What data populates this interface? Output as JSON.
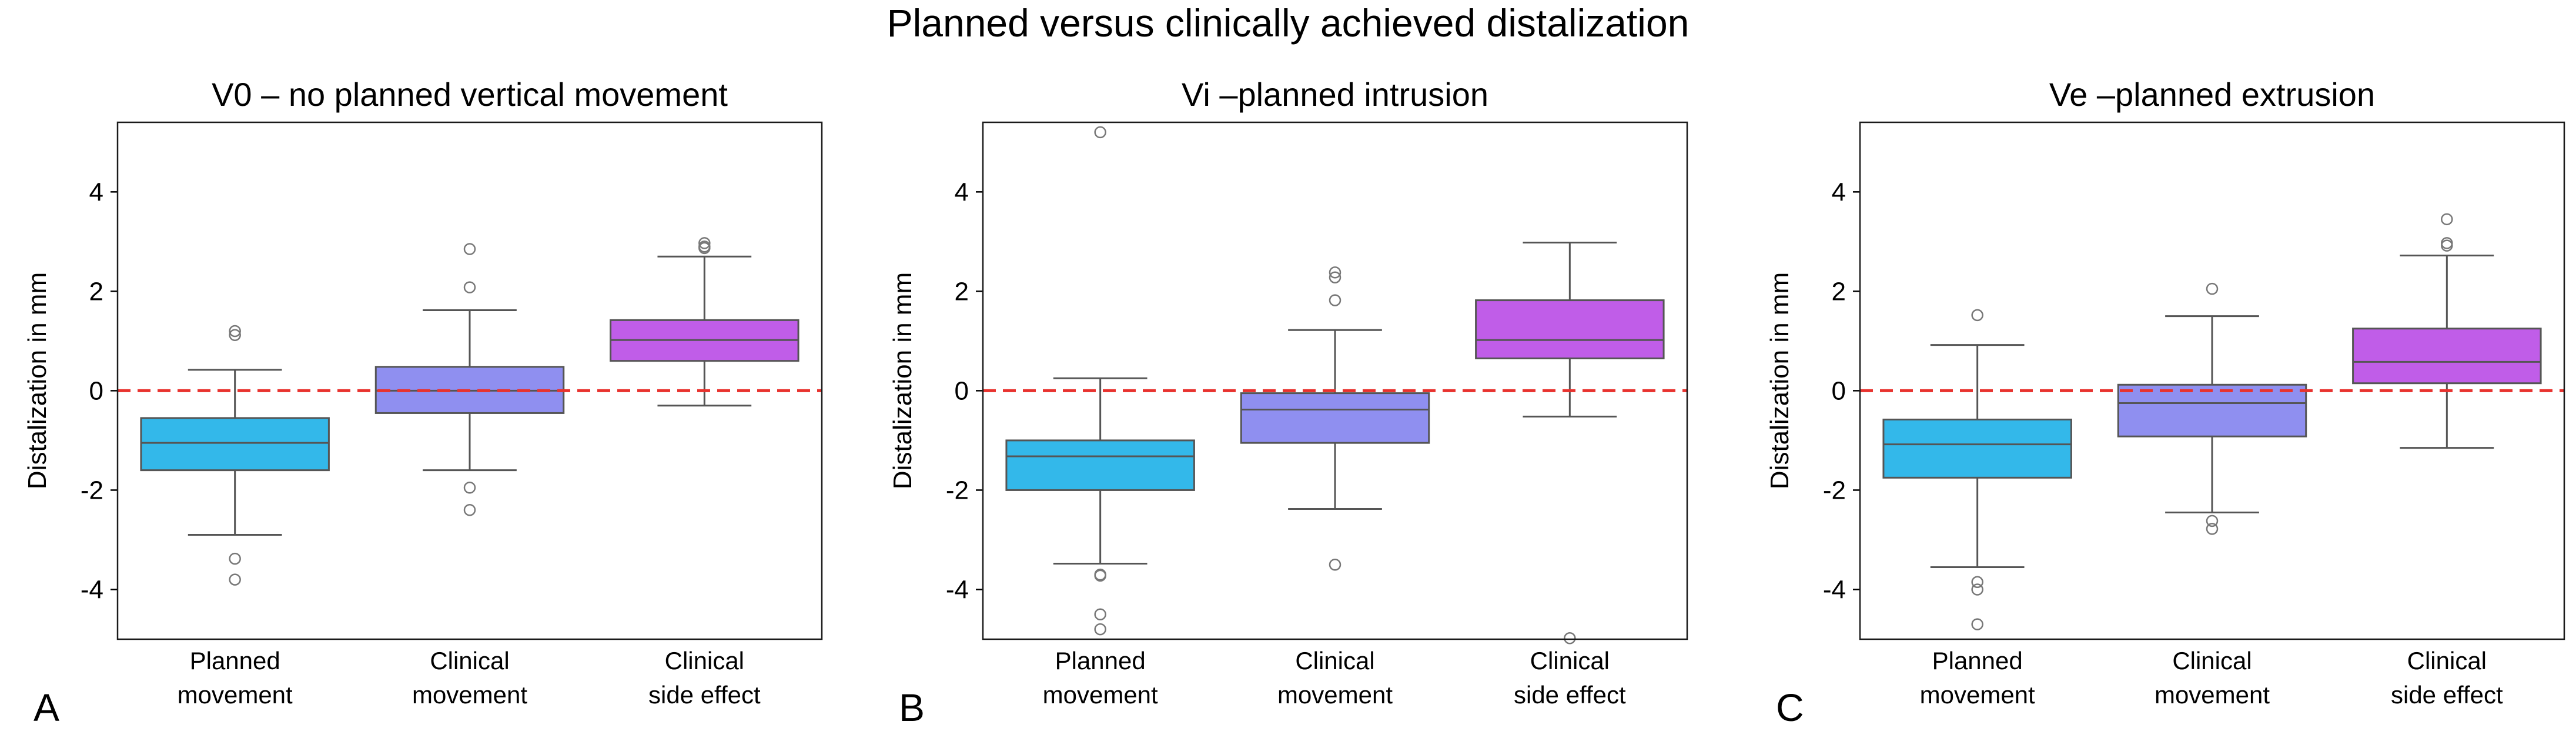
{
  "figure": {
    "title": "Planned versus clinically achieved distalization",
    "reference_line": {
      "value": 0,
      "color": "#e8322e",
      "style": "dashed"
    }
  },
  "colors": {
    "planned_movement": "#33b8ea",
    "clinical_movement": "#8f8ff0",
    "clinical_side_effect": "#c05de8",
    "box_edge": "#555555",
    "outlier_edge": "#777777"
  },
  "chart_data": [
    {
      "type": "box",
      "panel_letter": "A",
      "title": "V0 – no planned vertical movement",
      "ylabel": "Distalization in mm",
      "ylim": [
        -5,
        5.4
      ],
      "yticks": [
        -4,
        -2,
        0,
        2,
        4
      ],
      "categories": [
        {
          "line1": "Planned",
          "line2": "movement"
        },
        {
          "line1": "Clinical",
          "line2": "movement"
        },
        {
          "line1": "Clinical",
          "line2": "side effect"
        }
      ],
      "boxes": [
        {
          "name": "Planned movement",
          "whisker_low": -2.9,
          "q1": -1.6,
          "median": -1.05,
          "q3": -0.55,
          "whisker_high": 0.42,
          "outliers": [
            1.2,
            1.12,
            -3.38,
            -3.8
          ]
        },
        {
          "name": "Clinical movement",
          "whisker_low": -1.6,
          "q1": -0.45,
          "median": 0.0,
          "q3": 0.48,
          "whisker_high": 1.62,
          "outliers": [
            2.85,
            2.08,
            -1.95,
            -2.4
          ]
        },
        {
          "name": "Clinical side effect",
          "whisker_low": -0.3,
          "q1": 0.6,
          "median": 1.02,
          "q3": 1.42,
          "whisker_high": 2.7,
          "outliers": [
            2.97,
            2.9,
            2.87
          ]
        }
      ]
    },
    {
      "type": "box",
      "panel_letter": "B",
      "title": "Vi –planned intrusion",
      "ylabel": "Distalization in mm",
      "ylim": [
        -5,
        5.4
      ],
      "yticks": [
        -4,
        -2,
        0,
        2,
        4
      ],
      "categories": [
        {
          "line1": "Planned",
          "line2": "movement"
        },
        {
          "line1": "Clinical",
          "line2": "movement"
        },
        {
          "line1": "Clinical",
          "line2": "side effect"
        }
      ],
      "boxes": [
        {
          "name": "Planned movement",
          "whisker_low": -3.48,
          "q1": -2.0,
          "median": -1.32,
          "q3": -1.0,
          "whisker_high": 0.25,
          "outliers": [
            5.2,
            -3.7,
            -3.72,
            -4.5,
            -4.8
          ]
        },
        {
          "name": "Clinical movement",
          "whisker_low": -2.38,
          "q1": -1.05,
          "median": -0.38,
          "q3": -0.05,
          "whisker_high": 1.22,
          "outliers": [
            2.38,
            2.28,
            1.82,
            -3.5
          ]
        },
        {
          "name": "Clinical side effect",
          "whisker_low": -0.52,
          "q1": 0.65,
          "median": 1.02,
          "q3": 1.82,
          "whisker_high": 2.98,
          "outliers": [
            -4.98
          ]
        }
      ]
    },
    {
      "type": "box",
      "panel_letter": "C",
      "title": "Ve –planned extrusion",
      "ylabel": "Distalization in mm",
      "ylim": [
        -5,
        5.4
      ],
      "yticks": [
        -4,
        -2,
        0,
        2,
        4
      ],
      "categories": [
        {
          "line1": "Planned",
          "line2": "movement"
        },
        {
          "line1": "Clinical",
          "line2": "movement"
        },
        {
          "line1": "Clinical",
          "line2": "side effect"
        }
      ],
      "boxes": [
        {
          "name": "Planned movement",
          "whisker_low": -3.55,
          "q1": -1.75,
          "median": -1.08,
          "q3": -0.58,
          "whisker_high": 0.92,
          "outliers": [
            1.52,
            -3.85,
            -4.0,
            -4.7
          ]
        },
        {
          "name": "Clinical movement",
          "whisker_low": -2.45,
          "q1": -0.92,
          "median": -0.25,
          "q3": 0.12,
          "whisker_high": 1.5,
          "outliers": [
            2.05,
            -2.62,
            -2.78
          ]
        },
        {
          "name": "Clinical side effect",
          "whisker_low": -1.15,
          "q1": 0.15,
          "median": 0.58,
          "q3": 1.25,
          "whisker_high": 2.72,
          "outliers": [
            3.45,
            2.97,
            2.92
          ]
        }
      ]
    }
  ]
}
